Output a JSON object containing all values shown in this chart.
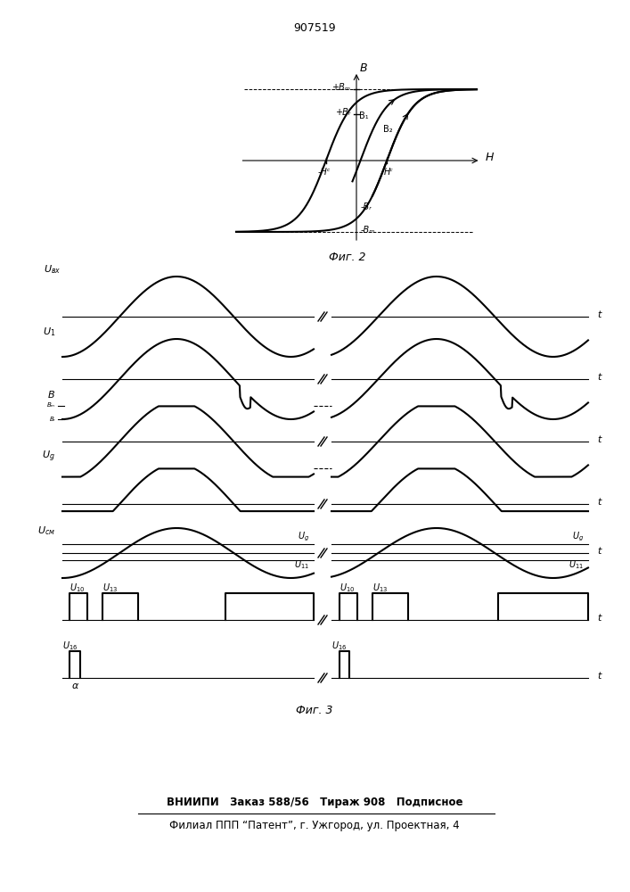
{
  "patent_number": "907519",
  "fig2_label": "Фиг. 2",
  "fig3_label": "Фиг. 3",
  "bottom_line1": "ВНИИПИ   Заказ 588/56   Тираж 908   Подписное",
  "bottom_line2": "Филиал ППП “Патент”, г. Ужгород, ул. Проектная, 4",
  "bg_color": "#ffffff",
  "line_color": "#000000"
}
